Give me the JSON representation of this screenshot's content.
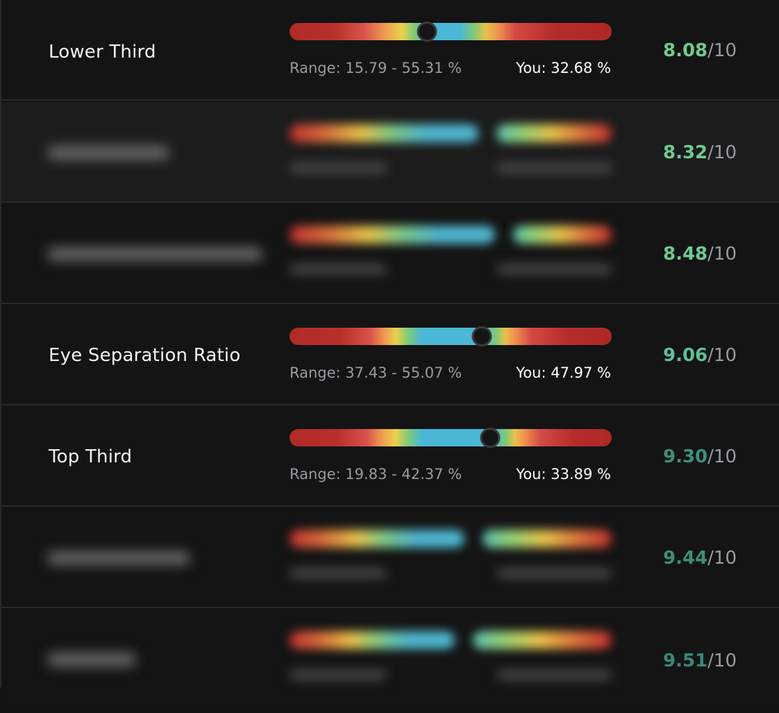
{
  "rows": [
    {
      "kind": "visible",
      "label": "Lower Third",
      "range": "Range: 15.79 - 55.31 %",
      "you": "You: 32.68 %",
      "marker_fraction": 0.426,
      "score": "8.08",
      "score_color": "#6fcb8e",
      "denominator": "/10"
    },
    {
      "kind": "blurred",
      "score": "8.32",
      "score_color": "#6fcb8e",
      "denominator": "/10"
    },
    {
      "kind": "blurred",
      "score": "8.48",
      "score_color": "#6fcb8e",
      "denominator": "/10"
    },
    {
      "kind": "visible",
      "label": "Eye Separation Ratio",
      "range": "Range: 37.43 - 55.07 %",
      "you": "You: 47.97 %",
      "marker_fraction": 0.598,
      "score": "9.06",
      "score_color": "#5fbf98",
      "denominator": "/10"
    },
    {
      "kind": "visible",
      "label": "Top Third",
      "range": "Range: 19.83 - 42.37 %",
      "you": "You: 33.89 %",
      "marker_fraction": 0.623,
      "score": "9.30",
      "score_color": "#3f8f78",
      "denominator": "/10"
    },
    {
      "kind": "blurred",
      "score": "9.44",
      "score_color": "#3f8f78",
      "denominator": "/10"
    },
    {
      "kind": "blurred",
      "score": "9.51",
      "score_color": "#3a8678",
      "denominator": "/10"
    }
  ]
}
